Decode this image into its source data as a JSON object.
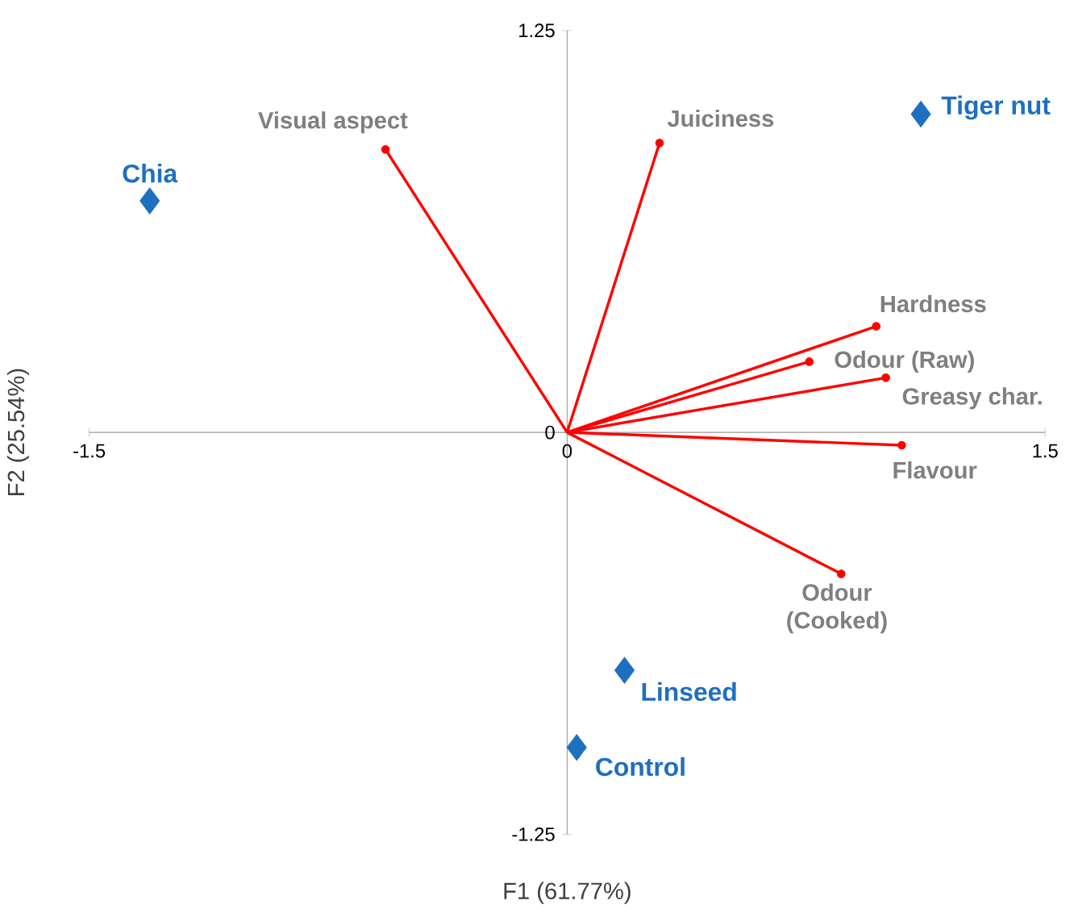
{
  "chart_data": {
    "type": "scatter",
    "xlabel": "F1 (61.77%)",
    "ylabel": "F2 (25.54%)",
    "xlim": [
      -1.5,
      1.5
    ],
    "ylim": [
      -1.25,
      1.25
    ],
    "xticks": [
      -1.5,
      0,
      1.5
    ],
    "yticks": [
      -1.25,
      0,
      1.25
    ],
    "series": [
      {
        "type": "line",
        "color": "#ff0000",
        "x": [
          0,
          -0.57
        ],
        "values": [
          0,
          0.88
        ]
      },
      {
        "type": "line",
        "color": "#ff0000",
        "x": [
          0,
          0.29
        ],
        "values": [
          0,
          0.9
        ]
      },
      {
        "type": "line",
        "color": "#ff0000",
        "x": [
          0,
          0.97
        ],
        "values": [
          0,
          0.33
        ]
      },
      {
        "type": "line",
        "color": "#ff0000",
        "x": [
          0,
          0.76
        ],
        "values": [
          0,
          0.22
        ]
      },
      {
        "type": "line",
        "color": "#ff0000",
        "x": [
          0,
          1.0
        ],
        "values": [
          0,
          0.17
        ]
      },
      {
        "type": "line",
        "color": "#ff0000",
        "x": [
          0,
          1.05
        ],
        "values": [
          0,
          -0.04
        ]
      },
      {
        "type": "line",
        "color": "#ff0000",
        "x": [
          0,
          0.86
        ],
        "values": [
          0,
          -0.44
        ]
      },
      {
        "color": "#ff0000",
        "marker": "circle",
        "x": [
          -0.57,
          0.29,
          0.97,
          0.76,
          1.0,
          1.05,
          0.86
        ],
        "values": [
          0.88,
          0.9,
          0.33,
          0.22,
          0.17,
          -0.04,
          -0.44
        ]
      },
      {
        "color": "#1f6fc0",
        "marker": "diamond",
        "x": [
          -1.31,
          1.11,
          0.18,
          0.03
        ],
        "values": [
          0.72,
          0.99,
          -0.74,
          -0.98
        ]
      }
    ],
    "annotations": [
      {
        "text": "Visual aspect",
        "x": -0.57,
        "y": 0.88
      },
      {
        "text": "Juiciness",
        "x": 0.29,
        "y": 0.9
      },
      {
        "text": "Hardness",
        "x": 0.97,
        "y": 0.33
      },
      {
        "text": "Odour (Raw)",
        "x": 0.76,
        "y": 0.22
      },
      {
        "text": "Greasy char.",
        "x": 1.0,
        "y": 0.17
      },
      {
        "text": "Flavour",
        "x": 1.05,
        "y": -0.04
      },
      {
        "text": "Odour (Cooked)",
        "x": 0.86,
        "y": -0.44
      },
      {
        "text": "Chia",
        "x": -1.31,
        "y": 0.72
      },
      {
        "text": "Tiger nut",
        "x": 1.11,
        "y": 0.99
      },
      {
        "text": "Linseed",
        "x": 0.18,
        "y": -0.74
      },
      {
        "text": "Control",
        "x": 0.03,
        "y": -0.98
      }
    ]
  }
}
